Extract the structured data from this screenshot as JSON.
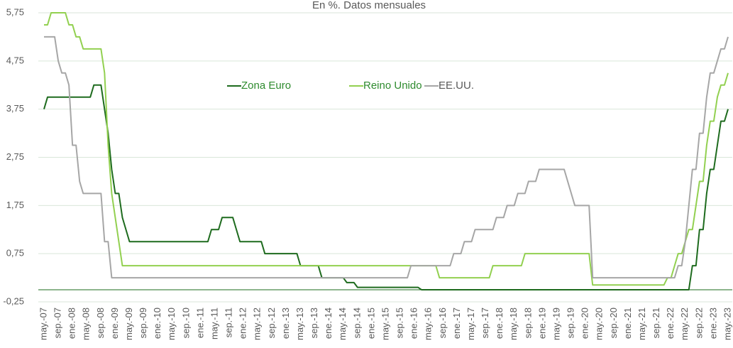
{
  "chart_data": {
    "type": "line",
    "subtitle": "En %. Datos mensuales",
    "categories": [
      "may.-07",
      null,
      null,
      null,
      "sep.-07",
      null,
      null,
      null,
      "ene.-08",
      null,
      null,
      null,
      "may.-08",
      null,
      null,
      null,
      "sep.-08",
      null,
      null,
      null,
      "ene.-09",
      null,
      null,
      null,
      "may.-09",
      null,
      null,
      null,
      "sep.-09",
      null,
      null,
      null,
      "ene.-10",
      null,
      null,
      null,
      "may.-10",
      null,
      null,
      null,
      "sep.-10",
      null,
      null,
      null,
      "ene.-11",
      null,
      null,
      null,
      "may.-11",
      null,
      null,
      null,
      "sep.-11",
      null,
      null,
      null,
      "ene.-12",
      null,
      null,
      null,
      "may.-12",
      null,
      null,
      null,
      "sep.-12",
      null,
      null,
      null,
      "ene.-13",
      null,
      null,
      null,
      "may.-13",
      null,
      null,
      null,
      "sep.-13",
      null,
      null,
      null,
      "ene.-14",
      null,
      null,
      null,
      "may.-14",
      null,
      null,
      null,
      "sep.-14",
      null,
      null,
      null,
      "ene.-15",
      null,
      null,
      null,
      "may.-15",
      null,
      null,
      null,
      "sep.-15",
      null,
      null,
      null,
      "ene.-16",
      null,
      null,
      null,
      "may.-16",
      null,
      null,
      null,
      "sep.-16",
      null,
      null,
      null,
      "ene.-17",
      null,
      null,
      null,
      "may.-17",
      null,
      null,
      null,
      "sep.-17",
      null,
      null,
      null,
      "ene.-18",
      null,
      null,
      null,
      "may.-18",
      null,
      null,
      null,
      "sep.-18",
      null,
      null,
      null,
      "ene.-19",
      null,
      null,
      null,
      "may.-19",
      null,
      null,
      null,
      "sep.-19",
      null,
      null,
      null,
      "ene.-20",
      null,
      null,
      null,
      "may.-20",
      null,
      null,
      null,
      "sep.-20",
      null,
      null,
      null,
      "ene.-21",
      null,
      null,
      null,
      "may.-21",
      null,
      null,
      null,
      "sep.-21",
      null,
      null,
      null,
      "ene.-22",
      null,
      null,
      null,
      "may.-22",
      null,
      null,
      null,
      "sep.-22",
      null,
      null,
      null,
      "ene.-23",
      null,
      null,
      null,
      "may.-23"
    ],
    "series": [
      {
        "name": "Zona Euro",
        "color": "#1e6b1e",
        "values": [
          3.75,
          4,
          4,
          4,
          4,
          4,
          4,
          4,
          4,
          4,
          4,
          4,
          4,
          4,
          4.25,
          4.25,
          4.25,
          3.75,
          3.25,
          2.5,
          2,
          2,
          1.5,
          1.25,
          1,
          1,
          1,
          1,
          1,
          1,
          1,
          1,
          1,
          1,
          1,
          1,
          1,
          1,
          1,
          1,
          1,
          1,
          1,
          1,
          1,
          1,
          1,
          1.25,
          1.25,
          1.25,
          1.5,
          1.5,
          1.5,
          1.5,
          1.25,
          1,
          1,
          1,
          1,
          1,
          1,
          1,
          0.75,
          0.75,
          0.75,
          0.75,
          0.75,
          0.75,
          0.75,
          0.75,
          0.75,
          0.75,
          0.5,
          0.5,
          0.5,
          0.5,
          0.5,
          0.5,
          0.25,
          0.25,
          0.25,
          0.25,
          0.25,
          0.25,
          0.25,
          0.15,
          0.15,
          0.15,
          0.05,
          0.05,
          0.05,
          0.05,
          0.05,
          0.05,
          0.05,
          0.05,
          0.05,
          0.05,
          0.05,
          0.05,
          0.05,
          0.05,
          0.05,
          0.05,
          0.05,
          0.05,
          0,
          0,
          0,
          0,
          0,
          0,
          0,
          0,
          0,
          0,
          0,
          0,
          0,
          0,
          0,
          0,
          0,
          0,
          0,
          0,
          0,
          0,
          0,
          0,
          0,
          0,
          0,
          0,
          0,
          0,
          0,
          0,
          0,
          0,
          0,
          0,
          0,
          0,
          0,
          0,
          0,
          0,
          0,
          0,
          0,
          0,
          0,
          0,
          0,
          0,
          0,
          0,
          0,
          0,
          0,
          0,
          0,
          0,
          0,
          0,
          0,
          0,
          0,
          0,
          0,
          0,
          0,
          0,
          0,
          0,
          0,
          0,
          0,
          0,
          0,
          0,
          0.5,
          0.5,
          1.25,
          1.25,
          2,
          2.5,
          2.5,
          3,
          3.5,
          3.5,
          3.75
        ]
      },
      {
        "name": "Reino Unido",
        "color": "#92d050",
        "values": [
          5.5,
          5.5,
          5.75,
          5.75,
          5.75,
          5.75,
          5.75,
          5.5,
          5.5,
          5.25,
          5.25,
          5,
          5,
          5,
          5,
          5,
          5,
          4.5,
          3,
          2,
          1.5,
          1,
          0.5,
          0.5,
          0.5,
          0.5,
          0.5,
          0.5,
          0.5,
          0.5,
          0.5,
          0.5,
          0.5,
          0.5,
          0.5,
          0.5,
          0.5,
          0.5,
          0.5,
          0.5,
          0.5,
          0.5,
          0.5,
          0.5,
          0.5,
          0.5,
          0.5,
          0.5,
          0.5,
          0.5,
          0.5,
          0.5,
          0.5,
          0.5,
          0.5,
          0.5,
          0.5,
          0.5,
          0.5,
          0.5,
          0.5,
          0.5,
          0.5,
          0.5,
          0.5,
          0.5,
          0.5,
          0.5,
          0.5,
          0.5,
          0.5,
          0.5,
          0.5,
          0.5,
          0.5,
          0.5,
          0.5,
          0.5,
          0.5,
          0.5,
          0.5,
          0.5,
          0.5,
          0.5,
          0.5,
          0.5,
          0.5,
          0.5,
          0.5,
          0.5,
          0.5,
          0.5,
          0.5,
          0.5,
          0.5,
          0.5,
          0.5,
          0.5,
          0.5,
          0.5,
          0.5,
          0.5,
          0.5,
          0.5,
          0.5,
          0.5,
          0.5,
          0.5,
          0.5,
          0.5,
          0.5,
          0.25,
          0.25,
          0.25,
          0.25,
          0.25,
          0.25,
          0.25,
          0.25,
          0.25,
          0.25,
          0.25,
          0.25,
          0.25,
          0.25,
          0.25,
          0.5,
          0.5,
          0.5,
          0.5,
          0.5,
          0.5,
          0.5,
          0.5,
          0.5,
          0.75,
          0.75,
          0.75,
          0.75,
          0.75,
          0.75,
          0.75,
          0.75,
          0.75,
          0.75,
          0.75,
          0.75,
          0.75,
          0.75,
          0.75,
          0.75,
          0.75,
          0.75,
          0.75,
          0.1,
          0.1,
          0.1,
          0.1,
          0.1,
          0.1,
          0.1,
          0.1,
          0.1,
          0.1,
          0.1,
          0.1,
          0.1,
          0.1,
          0.1,
          0.1,
          0.1,
          0.1,
          0.1,
          0.1,
          0.1,
          0.25,
          0.25,
          0.5,
          0.75,
          0.75,
          1,
          1.25,
          1.25,
          1.75,
          2.25,
          2.25,
          3,
          3.5,
          3.5,
          4,
          4.25,
          4.25,
          4.5
        ]
      },
      {
        "name": "EE.UU.",
        "color": "#a6a6a6",
        "values": [
          5.25,
          5.25,
          5.25,
          5.25,
          4.75,
          4.5,
          4.5,
          4.25,
          3,
          3,
          2.25,
          2,
          2,
          2,
          2,
          2,
          2,
          1,
          1,
          0.25,
          0.25,
          0.25,
          0.25,
          0.25,
          0.25,
          0.25,
          0.25,
          0.25,
          0.25,
          0.25,
          0.25,
          0.25,
          0.25,
          0.25,
          0.25,
          0.25,
          0.25,
          0.25,
          0.25,
          0.25,
          0.25,
          0.25,
          0.25,
          0.25,
          0.25,
          0.25,
          0.25,
          0.25,
          0.25,
          0.25,
          0.25,
          0.25,
          0.25,
          0.25,
          0.25,
          0.25,
          0.25,
          0.25,
          0.25,
          0.25,
          0.25,
          0.25,
          0.25,
          0.25,
          0.25,
          0.25,
          0.25,
          0.25,
          0.25,
          0.25,
          0.25,
          0.25,
          0.25,
          0.25,
          0.25,
          0.25,
          0.25,
          0.25,
          0.25,
          0.25,
          0.25,
          0.25,
          0.25,
          0.25,
          0.25,
          0.25,
          0.25,
          0.25,
          0.25,
          0.25,
          0.25,
          0.25,
          0.25,
          0.25,
          0.25,
          0.25,
          0.25,
          0.25,
          0.25,
          0.25,
          0.25,
          0.25,
          0.25,
          0.5,
          0.5,
          0.5,
          0.5,
          0.5,
          0.5,
          0.5,
          0.5,
          0.5,
          0.5,
          0.5,
          0.5,
          0.75,
          0.75,
          0.75,
          1,
          1,
          1,
          1.25,
          1.25,
          1.25,
          1.25,
          1.25,
          1.25,
          1.5,
          1.5,
          1.5,
          1.75,
          1.75,
          1.75,
          2,
          2,
          2,
          2.25,
          2.25,
          2.25,
          2.5,
          2.5,
          2.5,
          2.5,
          2.5,
          2.5,
          2.5,
          2.5,
          2.25,
          2,
          1.75,
          1.75,
          1.75,
          1.75,
          1.75,
          0.25,
          0.25,
          0.25,
          0.25,
          0.25,
          0.25,
          0.25,
          0.25,
          0.25,
          0.25,
          0.25,
          0.25,
          0.25,
          0.25,
          0.25,
          0.25,
          0.25,
          0.25,
          0.25,
          0.25,
          0.25,
          0.25,
          0.25,
          0.25,
          0.5,
          0.5,
          1,
          1.75,
          2.5,
          2.5,
          3.25,
          3.25,
          4,
          4.5,
          4.5,
          4.75,
          5,
          5,
          5.25
        ]
      }
    ],
    "ylim": [
      -0.25,
      5.75
    ],
    "yticks": [
      {
        "value": -0.25,
        "label": "-0,25"
      },
      {
        "value": 0.75,
        "label": "0,75"
      },
      {
        "value": 1.75,
        "label": "1,75"
      },
      {
        "value": 2.75,
        "label": "2,75"
      },
      {
        "value": 3.75,
        "label": "3,75"
      },
      {
        "value": 4.75,
        "label": "4,75"
      },
      {
        "value": 5.75,
        "label": "5,75"
      }
    ],
    "grid": true
  }
}
